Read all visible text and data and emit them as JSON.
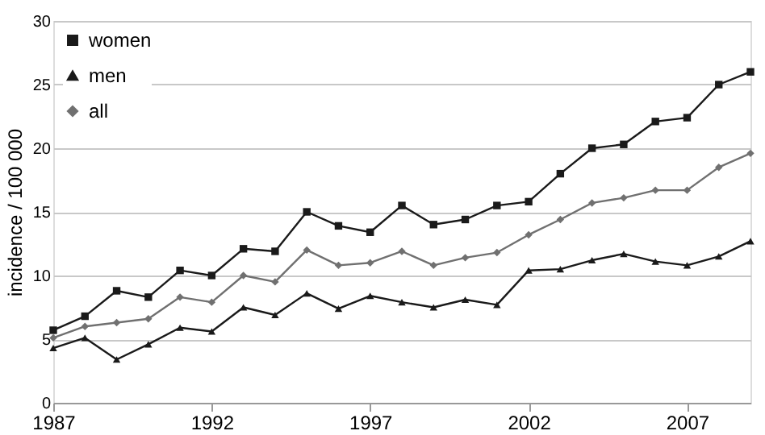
{
  "chart_data": {
    "type": "line",
    "ylabel": "incidence / 100 000",
    "x": [
      1987,
      1988,
      1989,
      1990,
      1991,
      1992,
      1993,
      1994,
      1995,
      1996,
      1997,
      1998,
      1999,
      2000,
      2001,
      2002,
      2003,
      2004,
      2005,
      2006,
      2007,
      2008,
      2009
    ],
    "series": [
      {
        "name": "women",
        "color": "#1a1a1a",
        "marker": "square",
        "values": [
          5.7,
          6.8,
          8.8,
          8.3,
          10.4,
          10.0,
          12.1,
          11.9,
          15.0,
          13.9,
          13.4,
          15.5,
          14.0,
          14.4,
          15.5,
          15.8,
          18.0,
          20.0,
          20.3,
          22.1,
          22.4,
          25.0,
          26.0
        ]
      },
      {
        "name": "men",
        "color": "#1a1a1a",
        "marker": "triangle",
        "values": [
          4.3,
          5.1,
          3.4,
          4.6,
          5.9,
          5.6,
          7.5,
          6.9,
          8.6,
          7.4,
          8.4,
          7.9,
          7.5,
          8.1,
          7.7,
          10.4,
          10.5,
          11.2,
          11.7,
          11.1,
          10.8,
          11.5,
          12.7
        ]
      },
      {
        "name": "all",
        "color": "#707070",
        "marker": "diamond",
        "values": [
          5.1,
          6.0,
          6.3,
          6.6,
          8.3,
          7.9,
          10.0,
          9.5,
          12.0,
          10.8,
          11.0,
          11.9,
          10.8,
          11.4,
          11.8,
          13.2,
          14.4,
          15.7,
          16.1,
          16.7,
          16.7,
          18.5,
          19.6
        ]
      }
    ],
    "xlim": [
      1987,
      2009
    ],
    "xticks": [
      1987,
      1992,
      1997,
      2002,
      2007
    ],
    "ylim": [
      0,
      30
    ],
    "yticks": [
      0,
      5,
      10,
      15,
      20,
      25,
      30
    ],
    "grid": "y",
    "legend": "top left",
    "line_style": "solid"
  }
}
